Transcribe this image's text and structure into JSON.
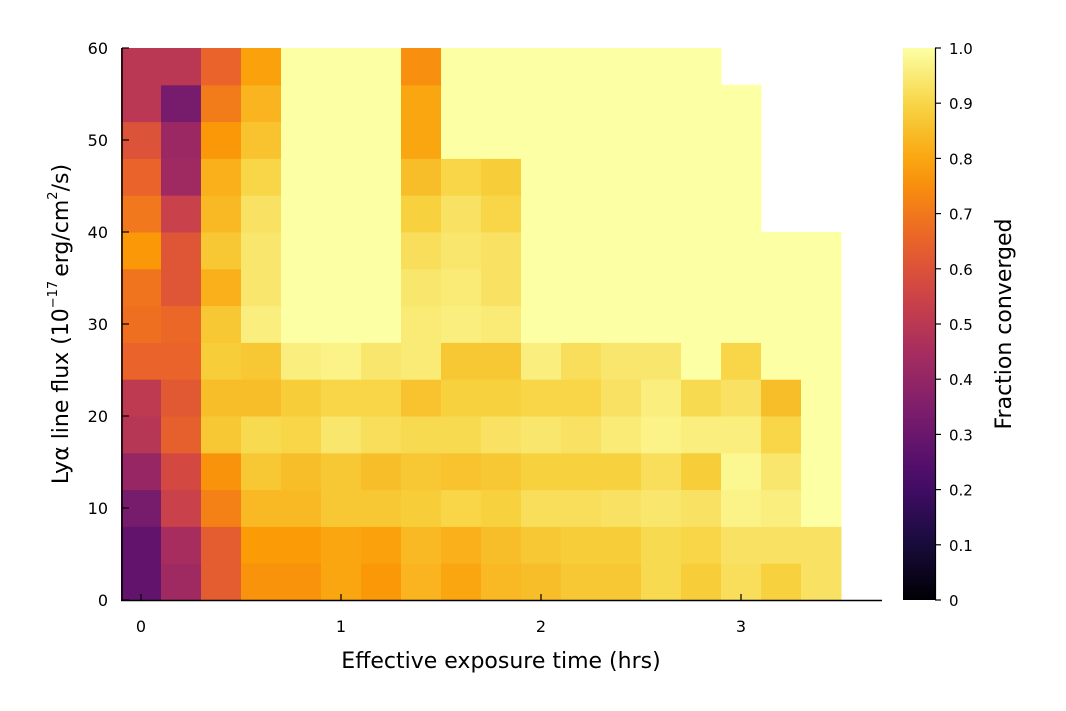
{
  "chart_data": {
    "type": "heatmap",
    "colormap": "inferno",
    "xlabel": "Effective exposure time (hrs)",
    "ylabel": {
      "prefix": "Lyα line flux (10",
      "exp": "−17",
      "mid": "erg/cm",
      "exp2": "2",
      "suffix": "/s)"
    },
    "colorbar_label": "Fraction converged",
    "xlim": [
      -0.1,
      3.7
    ],
    "ylim": [
      0,
      60
    ],
    "clim": [
      0,
      1
    ],
    "grid": false,
    "xticks": [
      0,
      1,
      2,
      3
    ],
    "xtick_labels": [
      "0",
      "1",
      "2",
      "3"
    ],
    "yticks": [
      0,
      10,
      20,
      30,
      40,
      50,
      60
    ],
    "ytick_labels": [
      "0",
      "10",
      "20",
      "30",
      "40",
      "50",
      "60"
    ],
    "cbar_ticks": [
      0,
      0.1,
      0.2,
      0.3,
      0.4,
      0.5,
      0.6,
      0.7,
      0.8,
      0.9,
      1.0
    ],
    "cbar_tick_labels": [
      "0",
      "0.1",
      "0.2",
      "0.3",
      "0.4",
      "0.5",
      "0.6",
      "0.7",
      "0.8",
      "0.9",
      "1.0"
    ],
    "x_centers": [
      0,
      0.2,
      0.4,
      0.6,
      0.8,
      1.0,
      1.2,
      1.4,
      1.6,
      1.8,
      2.0,
      2.2,
      2.4,
      2.6,
      2.8,
      3.0,
      3.2,
      3.4
    ],
    "x_cell_width": 0.2,
    "y_edges_bottom": [
      0,
      4,
      8,
      12,
      16,
      20,
      24,
      28,
      32,
      36,
      40,
      44,
      48,
      52,
      56
    ],
    "y_cell_height": 4,
    "z_rows_bottom_to_top": [
      [
        0.28,
        0.43,
        0.63,
        0.76,
        0.76,
        0.8,
        0.77,
        0.83,
        0.8,
        0.84,
        0.85,
        0.87,
        0.87,
        0.91,
        0.88,
        0.92,
        0.89,
        0.93
      ],
      [
        0.28,
        0.45,
        0.63,
        0.78,
        0.78,
        0.8,
        0.79,
        0.84,
        0.82,
        0.85,
        0.87,
        0.88,
        0.88,
        0.91,
        0.9,
        0.93,
        0.93,
        0.93
      ],
      [
        0.33,
        0.54,
        0.72,
        0.84,
        0.84,
        0.87,
        0.87,
        0.88,
        0.9,
        0.89,
        0.92,
        0.92,
        0.93,
        0.94,
        0.93,
        0.97,
        0.96,
        1.0
      ],
      [
        0.41,
        0.57,
        0.76,
        0.87,
        0.85,
        0.87,
        0.85,
        0.87,
        0.86,
        0.87,
        0.89,
        0.89,
        0.89,
        0.92,
        0.88,
        0.98,
        0.94,
        1.0
      ],
      [
        0.49,
        0.64,
        0.87,
        0.91,
        0.9,
        0.94,
        0.92,
        0.91,
        0.91,
        0.93,
        0.94,
        0.93,
        0.95,
        0.97,
        0.96,
        0.96,
        0.9,
        1.0
      ],
      [
        0.51,
        0.62,
        0.85,
        0.85,
        0.88,
        0.9,
        0.9,
        0.86,
        0.89,
        0.89,
        0.9,
        0.9,
        0.93,
        0.96,
        0.91,
        0.93,
        0.85,
        1.0
      ],
      [
        0.65,
        0.65,
        0.88,
        0.87,
        0.96,
        0.97,
        0.94,
        0.95,
        0.87,
        0.87,
        0.96,
        0.92,
        0.94,
        0.94,
        1.0,
        0.9,
        1.0,
        1.0
      ],
      [
        0.68,
        0.66,
        0.87,
        0.96,
        1.0,
        1.0,
        1.0,
        0.95,
        0.96,
        0.95,
        1.0,
        1.0,
        1.0,
        1.0,
        1.0,
        1.0,
        1.0,
        1.0
      ],
      [
        0.69,
        0.61,
        0.82,
        0.94,
        1.0,
        1.0,
        1.0,
        0.94,
        0.95,
        0.93,
        1.0,
        1.0,
        1.0,
        1.0,
        1.0,
        1.0,
        1.0,
        1.0
      ],
      [
        0.77,
        0.61,
        0.87,
        0.94,
        1.0,
        1.0,
        1.0,
        0.92,
        0.94,
        0.93,
        1.0,
        1.0,
        1.0,
        1.0,
        1.0,
        1.0,
        1.0,
        1.0
      ],
      [
        0.7,
        0.54,
        0.84,
        0.93,
        1.0,
        1.0,
        1.0,
        0.89,
        0.93,
        0.9,
        1.0,
        1.0,
        1.0,
        1.0,
        1.0,
        1.0,
        null,
        null
      ],
      [
        0.65,
        0.43,
        0.82,
        0.9,
        1.0,
        1.0,
        1.0,
        0.85,
        0.9,
        0.88,
        1.0,
        1.0,
        1.0,
        1.0,
        1.0,
        1.0,
        null,
        null
      ],
      [
        0.6,
        0.42,
        0.77,
        0.86,
        1.0,
        1.0,
        1.0,
        0.8,
        1.0,
        1.0,
        1.0,
        1.0,
        1.0,
        1.0,
        1.0,
        1.0,
        null,
        null
      ],
      [
        0.5,
        0.33,
        0.71,
        0.83,
        1.0,
        1.0,
        1.0,
        0.8,
        1.0,
        1.0,
        1.0,
        1.0,
        1.0,
        1.0,
        1.0,
        1.0,
        null,
        null
      ],
      [
        0.5,
        0.5,
        0.65,
        0.79,
        1.0,
        1.0,
        1.0,
        0.75,
        1.0,
        1.0,
        1.0,
        1.0,
        1.0,
        1.0,
        1.0,
        null,
        null,
        null
      ]
    ]
  }
}
